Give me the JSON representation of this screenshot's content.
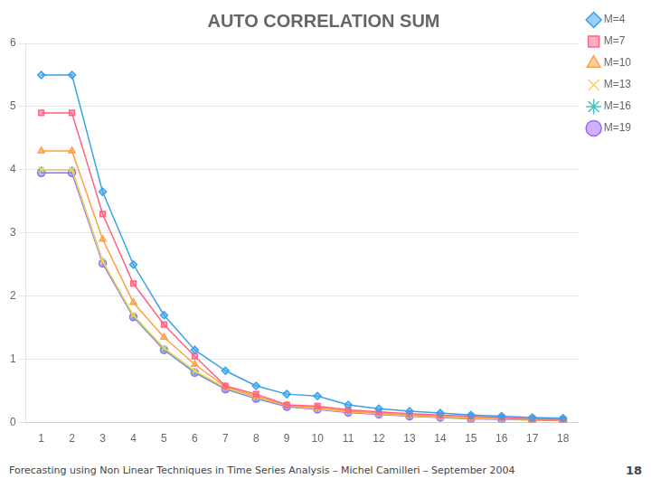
{
  "chart_data": {
    "type": "line",
    "title": "AUTO CORRELATION SUM",
    "annotations": [
      "Forecasting using Non Linear Techniques in Time Series Analysis – Michel Camilleri – September 2004",
      "18"
    ],
    "x": [
      1,
      2,
      3,
      4,
      5,
      6,
      7,
      8,
      9,
      10,
      11,
      12,
      13,
      14,
      15,
      16,
      17,
      18
    ],
    "xlim": [
      0.5,
      18.5
    ],
    "xticks": [
      1,
      2,
      3,
      4,
      5,
      6,
      7,
      8,
      9,
      10,
      11,
      12,
      13,
      14,
      15,
      16,
      17,
      18
    ],
    "ylim": [
      0,
      6
    ],
    "yticks": [
      0,
      1,
      2,
      3,
      4,
      5,
      6
    ],
    "grid": true,
    "legend": "right",
    "series": [
      {
        "name": "M=4",
        "marker": "diamond",
        "values": [
          5.5,
          5.5,
          3.65,
          2.5,
          1.7,
          1.15,
          0.82,
          0.58,
          0.45,
          0.42,
          0.28,
          0.22,
          0.18,
          0.15,
          0.12,
          0.1,
          0.08,
          0.07
        ]
      },
      {
        "name": "M=7",
        "marker": "square",
        "values": [
          4.9,
          4.9,
          3.3,
          2.2,
          1.55,
          1.05,
          0.58,
          0.45,
          0.28,
          0.26,
          0.2,
          0.17,
          0.14,
          0.12,
          0.1,
          0.08,
          0.06,
          0.05
        ]
      },
      {
        "name": "M=10",
        "marker": "triangle",
        "values": [
          4.3,
          4.3,
          2.9,
          1.9,
          1.35,
          0.92,
          0.57,
          0.42,
          0.27,
          0.24,
          0.18,
          0.15,
          0.12,
          0.1,
          0.08,
          0.07,
          0.05,
          0.04
        ]
      },
      {
        "name": "M=13",
        "marker": "x",
        "values": [
          4.0,
          4.0,
          2.55,
          1.7,
          1.18,
          0.82,
          0.55,
          0.4,
          0.27,
          0.22,
          0.17,
          0.14,
          0.11,
          0.09,
          0.07,
          0.06,
          0.05,
          0.04
        ]
      },
      {
        "name": "M=16",
        "marker": "star",
        "values": [
          4.0,
          4.0,
          2.55,
          1.68,
          1.16,
          0.8,
          0.54,
          0.39,
          0.26,
          0.22,
          0.17,
          0.14,
          0.11,
          0.09,
          0.07,
          0.06,
          0.05,
          0.04
        ]
      },
      {
        "name": "M=19",
        "marker": "circle",
        "values": [
          3.95,
          3.95,
          2.52,
          1.67,
          1.15,
          0.79,
          0.53,
          0.38,
          0.25,
          0.21,
          0.16,
          0.13,
          0.1,
          0.08,
          0.06,
          0.05,
          0.04,
          0.03
        ]
      }
    ]
  }
}
